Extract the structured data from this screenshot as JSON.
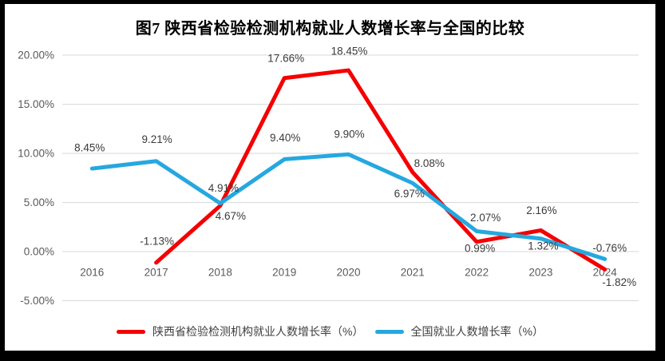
{
  "chart_data": {
    "type": "line",
    "title": "图7 陕西省检验检测机构就业人数增长率与全国的比较",
    "categories": [
      "2016",
      "2017",
      "2018",
      "2019",
      "2020",
      "2021",
      "2022",
      "2023",
      "2024"
    ],
    "series": [
      {
        "name": "陕西省检验检测机构就业人数增长率（%）",
        "color": "#f40000",
        "values": [
          null,
          -1.13,
          4.67,
          17.66,
          18.45,
          8.08,
          0.99,
          2.16,
          -1.82
        ],
        "labels": [
          "",
          "-1.13%",
          "4.67%",
          "17.66%",
          "18.45%",
          "8.08%",
          "0.99%",
          "2.16%",
          "-1.82%"
        ],
        "label_offsets": [
          [
            0,
            0
          ],
          [
            1,
            -27
          ],
          [
            13,
            13
          ],
          [
            2,
            -25
          ],
          [
            1,
            -24
          ],
          [
            21,
            -11
          ],
          [
            4,
            8
          ],
          [
            1,
            -25
          ],
          [
            18,
            16
          ]
        ]
      },
      {
        "name": "全国就业人数增长率（%）",
        "color": "#25a8e0",
        "values": [
          8.45,
          9.21,
          4.91,
          9.4,
          9.9,
          6.97,
          2.07,
          1.32,
          -0.76
        ],
        "labels": [
          "8.45%",
          "9.21%",
          "4.91%",
          "9.40%",
          "9.90%",
          "6.97%",
          "2.07%",
          "1.32%",
          "-0.76%"
        ],
        "label_offsets": [
          [
            -3,
            -26
          ],
          [
            1,
            -27
          ],
          [
            4,
            -19
          ],
          [
            1,
            -27
          ],
          [
            1,
            -25
          ],
          [
            -4,
            13
          ],
          [
            11,
            -17
          ],
          [
            3,
            9
          ],
          [
            6,
            -14
          ]
        ]
      }
    ],
    "y_ticks": [
      {
        "value": 20,
        "label": "20.00%"
      },
      {
        "value": 15,
        "label": "15.00%"
      },
      {
        "value": 10,
        "label": "10.00%"
      },
      {
        "value": 5,
        "label": "5.00%"
      },
      {
        "value": 0,
        "label": "0.00%"
      },
      {
        "value": -5,
        "label": "-5.00%"
      }
    ],
    "ylim": [
      -5,
      20
    ],
    "grid": true,
    "gridline_color": "#d9d9d9",
    "legend_position": "bottom"
  }
}
